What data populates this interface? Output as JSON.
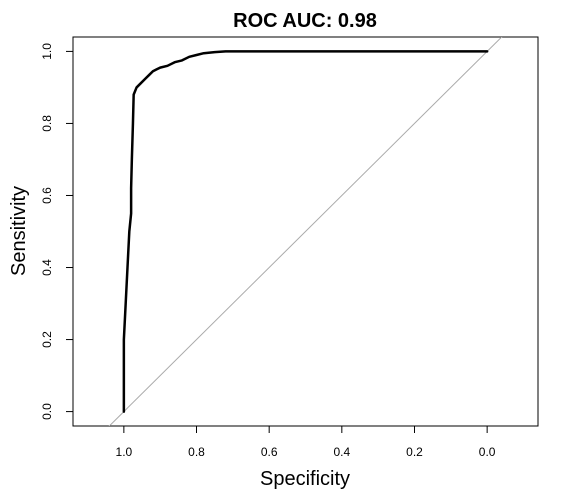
{
  "chart_data": {
    "type": "line",
    "title": "ROC AUC: 0.98",
    "xlabel": "Specificity",
    "ylabel": "Sensitivity",
    "x_reversed": true,
    "xlim": [
      1.14,
      -0.14
    ],
    "ylim": [
      -0.04,
      1.04
    ],
    "x_ticks": [
      "1.0",
      "0.8",
      "0.6",
      "0.4",
      "0.2",
      "0.0"
    ],
    "y_ticks": [
      "0.0",
      "0.2",
      "0.4",
      "0.6",
      "0.8",
      "1.0"
    ],
    "grid": false,
    "legend": "none",
    "series": [
      {
        "color": "#000000",
        "points": [
          [
            1.0,
            0.0
          ],
          [
            1.0,
            0.2
          ],
          [
            0.995,
            0.3
          ],
          [
            0.99,
            0.4
          ],
          [
            0.985,
            0.5
          ],
          [
            0.98,
            0.55
          ],
          [
            0.98,
            0.62
          ],
          [
            0.978,
            0.7
          ],
          [
            0.975,
            0.8
          ],
          [
            0.973,
            0.88
          ],
          [
            0.965,
            0.9
          ],
          [
            0.955,
            0.91
          ],
          [
            0.94,
            0.925
          ],
          [
            0.93,
            0.935
          ],
          [
            0.92,
            0.945
          ],
          [
            0.91,
            0.95
          ],
          [
            0.9,
            0.955
          ],
          [
            0.88,
            0.96
          ],
          [
            0.86,
            0.97
          ],
          [
            0.84,
            0.975
          ],
          [
            0.82,
            0.985
          ],
          [
            0.8,
            0.99
          ],
          [
            0.78,
            0.995
          ],
          [
            0.75,
            0.998
          ],
          [
            0.72,
            1.0
          ],
          [
            0.0,
            1.0
          ]
        ]
      }
    ],
    "reference_line": {
      "from": [
        1.0,
        0.0
      ],
      "to": [
        0.0,
        1.0
      ],
      "color": "#aaaaaa"
    }
  }
}
